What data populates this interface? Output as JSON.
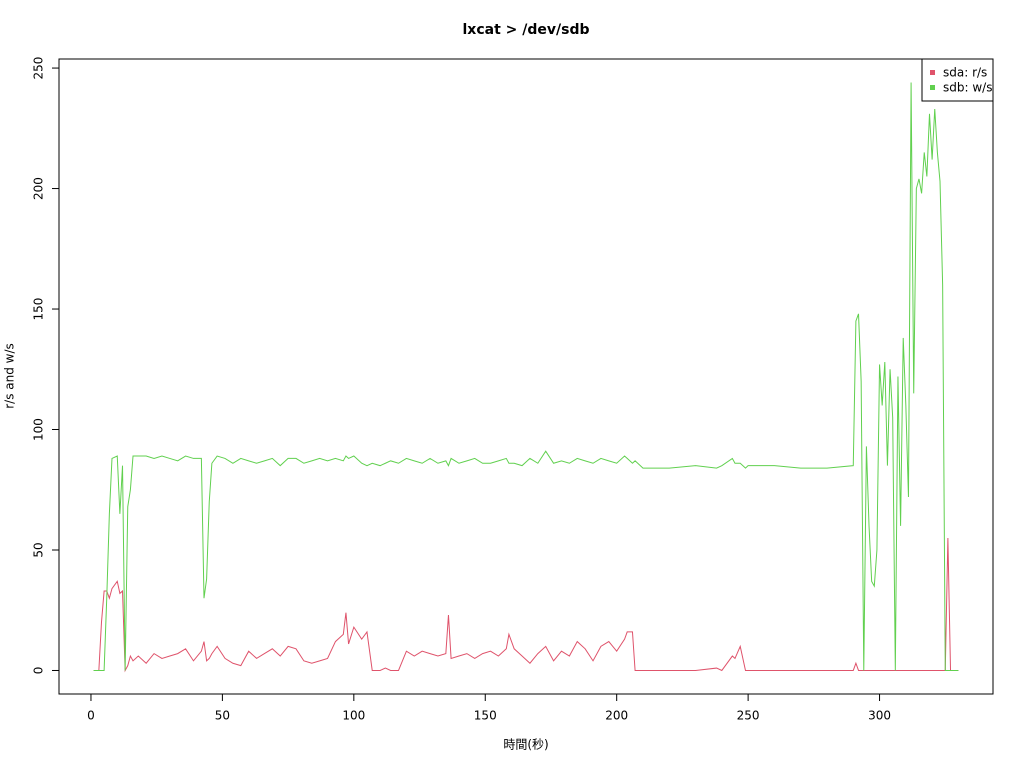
{
  "chart_data": {
    "type": "line",
    "title": "lxcat > /dev/sdb",
    "x_label": "時間(秒)",
    "y_label": "r/s and w/s",
    "x": [
      1,
      3,
      4,
      5,
      6,
      7,
      8,
      10,
      11,
      12,
      13,
      14,
      15,
      16,
      18,
      21,
      24,
      27,
      30,
      33,
      36,
      39,
      42,
      43,
      44,
      45,
      46,
      48,
      51,
      54,
      57,
      60,
      63,
      66,
      69,
      72,
      75,
      78,
      81,
      84,
      87,
      90,
      93,
      96,
      97,
      98,
      100,
      103,
      105,
      107,
      110,
      112,
      114,
      117,
      120,
      123,
      126,
      129,
      132,
      135,
      136,
      137,
      140,
      143,
      146,
      149,
      152,
      155,
      158,
      159,
      161,
      164,
      167,
      170,
      173,
      176,
      179,
      182,
      185,
      188,
      191,
      194,
      197,
      200,
      203,
      204,
      206,
      207,
      210,
      220,
      230,
      238,
      240,
      244,
      245,
      247,
      249,
      250,
      260,
      270,
      280,
      290,
      291,
      292,
      293,
      294,
      295,
      296,
      297,
      298,
      299,
      300,
      301,
      302,
      303,
      304,
      305,
      306,
      307,
      308,
      309,
      310,
      311,
      312,
      313,
      314,
      315,
      316,
      317,
      318,
      319,
      320,
      321,
      322,
      323,
      324,
      325,
      326,
      327,
      330
    ],
    "series": [
      {
        "name": "sda: r/s",
        "color": "#df536b",
        "values": [
          0,
          0,
          20,
          33,
          33,
          30,
          34,
          37,
          32,
          33,
          0,
          2,
          6,
          4,
          6,
          3,
          7,
          5,
          6,
          7,
          9,
          4,
          8,
          12,
          4,
          5,
          7,
          10,
          5,
          3,
          2,
          8,
          5,
          7,
          9,
          6,
          10,
          9,
          4,
          3,
          4,
          5,
          12,
          15,
          24,
          11,
          18,
          13,
          16,
          0,
          0,
          1,
          0,
          0,
          8,
          6,
          8,
          7,
          6,
          7,
          23,
          5,
          6,
          7,
          5,
          7,
          8,
          6,
          9,
          15,
          9,
          6,
          3,
          7,
          10,
          4,
          8,
          6,
          12,
          9,
          4,
          10,
          12,
          8,
          13,
          16,
          16,
          0,
          0,
          0,
          0,
          1,
          0,
          6,
          5,
          10,
          0,
          0,
          0,
          0,
          0,
          0,
          3,
          0,
          0,
          0,
          0,
          0,
          0,
          0,
          0,
          0,
          0,
          0,
          0,
          0,
          0,
          0,
          0,
          0,
          0,
          0,
          0,
          0,
          0,
          0,
          0,
          0,
          0,
          0,
          0,
          0,
          0,
          0,
          0,
          0,
          0,
          55,
          0,
          0
        ]
      },
      {
        "name": "sdb: w/s",
        "color": "#61d04f",
        "values": [
          0,
          0,
          0,
          0,
          30,
          65,
          88,
          89,
          65,
          85,
          0,
          68,
          75,
          89,
          89,
          89,
          88,
          89,
          88,
          87,
          89,
          88,
          88,
          30,
          38,
          70,
          86,
          89,
          88,
          86,
          88,
          87,
          86,
          87,
          88,
          85,
          88,
          88,
          86,
          87,
          88,
          87,
          88,
          87,
          89,
          88,
          89,
          86,
          85,
          86,
          85,
          86,
          87,
          86,
          88,
          87,
          86,
          88,
          86,
          87,
          85,
          88,
          86,
          87,
          88,
          86,
          86,
          87,
          88,
          86,
          86,
          85,
          88,
          86,
          91,
          86,
          87,
          86,
          88,
          87,
          86,
          88,
          87,
          86,
          89,
          88,
          86,
          87,
          84,
          84,
          85,
          84,
          85,
          88,
          86,
          86,
          84,
          85,
          85,
          84,
          84,
          85,
          145,
          148,
          120,
          0,
          93,
          60,
          37,
          35,
          50,
          127,
          110,
          128,
          85,
          125,
          105,
          0,
          122,
          60,
          138,
          110,
          72,
          244,
          115,
          200,
          204,
          198,
          215,
          205,
          231,
          212,
          233,
          215,
          203,
          160,
          0,
          0,
          0,
          0
        ]
      }
    ],
    "xlim": [
      -12.16,
      343.16
    ],
    "ylim": [
      -9.76,
      253.76
    ],
    "xticks": [
      0,
      50,
      100,
      150,
      200,
      250,
      300
    ],
    "yticks": [
      0,
      50,
      100,
      150,
      200,
      250
    ],
    "legend": "topright"
  }
}
